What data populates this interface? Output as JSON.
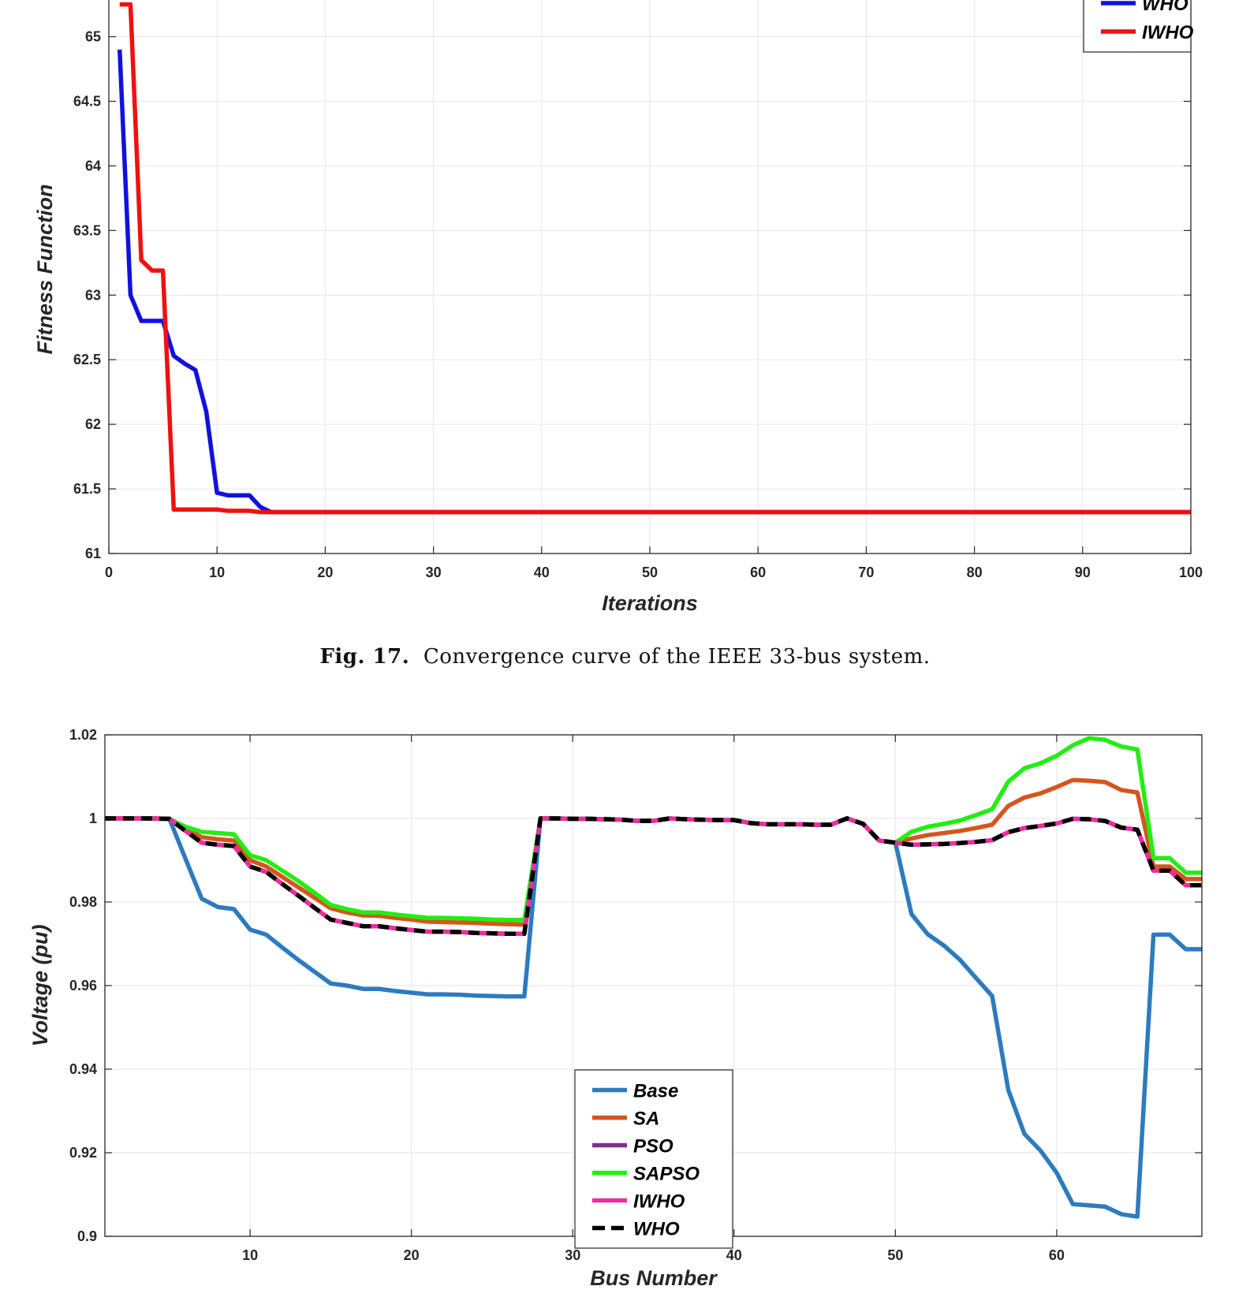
{
  "caption": {
    "label": "Fig. 17.",
    "text": "Convergence curve of the IEEE 33-bus system."
  },
  "chart_data": [
    {
      "type": "line",
      "title": "",
      "xlabel": "Iterations",
      "ylabel": "Fitness Function",
      "xlim": [
        0,
        100
      ],
      "ylim": [
        61,
        65.4
      ],
      "xticks": [
        0,
        10,
        20,
        30,
        40,
        50,
        60,
        70,
        80,
        90,
        100
      ],
      "yticks": [
        61,
        61.5,
        62,
        62.5,
        63,
        63.5,
        64,
        64.5,
        65
      ],
      "ytick_labels": [
        "61",
        "61.5",
        "62",
        "62.5",
        "63",
        "63.5",
        "64",
        "64.5",
        "65"
      ],
      "grid": true,
      "legend_position": "top-right",
      "series": [
        {
          "name": "WHO",
          "color": "#1111dd",
          "x": [
            1,
            2,
            3,
            4,
            5,
            6,
            7,
            8,
            9,
            10,
            11,
            12,
            13,
            14,
            15,
            16,
            20,
            30,
            50,
            100
          ],
          "y": [
            64.9,
            63.0,
            62.8,
            62.8,
            62.8,
            62.53,
            62.47,
            62.42,
            62.1,
            61.47,
            61.45,
            61.45,
            61.45,
            61.36,
            61.32,
            61.32,
            61.32,
            61.32,
            61.32,
            61.32
          ]
        },
        {
          "name": "IWHO",
          "color": "#ee1111",
          "x": [
            1,
            2,
            3,
            4,
            5,
            6,
            7,
            8,
            9,
            10,
            11,
            12,
            13,
            14,
            15,
            16,
            20,
            50,
            100
          ],
          "y": [
            65.25,
            65.25,
            63.27,
            63.19,
            63.19,
            61.34,
            61.34,
            61.34,
            61.34,
            61.34,
            61.33,
            61.33,
            61.33,
            61.32,
            61.32,
            61.32,
            61.32,
            61.32,
            61.32
          ]
        }
      ]
    },
    {
      "type": "line",
      "title": "",
      "xlabel": "Bus Number",
      "ylabel": "Voltage (pu)",
      "xlim": [
        1,
        69
      ],
      "ylim": [
        0.9,
        1.02
      ],
      "xticks": [
        10,
        20,
        30,
        40,
        50,
        60
      ],
      "yticks": [
        0.9,
        0.92,
        0.94,
        0.96,
        0.98,
        1.0,
        1.02
      ],
      "ytick_labels": [
        "0.9",
        "0.92",
        "0.94",
        "0.96",
        "0.98",
        "1",
        "1.02"
      ],
      "grid": true,
      "legend_position": "lower-center",
      "series": [
        {
          "name": "Base",
          "color": "#2d7bbf",
          "x": [
            1,
            2,
            3,
            4,
            5,
            6,
            7,
            8,
            9,
            10,
            11,
            12,
            13,
            14,
            15,
            16,
            17,
            18,
            19,
            20,
            21,
            22,
            23,
            24,
            25,
            26,
            27,
            28,
            29,
            30,
            31,
            32,
            33,
            34,
            35,
            36,
            37,
            38,
            39,
            40,
            41,
            42,
            43,
            44,
            45,
            46,
            47,
            48,
            49,
            50,
            51,
            52,
            53,
            54,
            55,
            56,
            57,
            58,
            59,
            60,
            61,
            62,
            63,
            64,
            65,
            66,
            67,
            68,
            69
          ],
          "y": [
            1.0,
            1.0,
            1.0,
            0.9999,
            0.9999,
            0.9903,
            0.9808,
            0.9788,
            0.9783,
            0.9734,
            0.9722,
            0.9691,
            0.9661,
            0.9633,
            0.9605,
            0.96,
            0.9592,
            0.9592,
            0.9587,
            0.9583,
            0.9579,
            0.9579,
            0.9578,
            0.9576,
            0.9575,
            0.9574,
            0.9574,
            1.0,
            1.0,
            0.9999,
            0.9999,
            0.9998,
            0.9997,
            0.9994,
            0.9994,
            1.0,
            0.9998,
            0.9997,
            0.9996,
            0.9996,
            0.9989,
            0.9986,
            0.9986,
            0.9986,
            0.9985,
            0.9985,
            1.0,
            0.9987,
            0.9947,
            0.9942,
            0.9771,
            0.9723,
            0.9696,
            0.9662,
            0.9618,
            0.9575,
            0.935,
            0.9245,
            0.9205,
            0.9152,
            0.9077,
            0.9074,
            0.9071,
            0.9053,
            0.9047,
            0.9722,
            0.9722,
            0.9687,
            0.9687
          ]
        },
        {
          "name": "SA",
          "color": "#d4561f",
          "x": [
            1,
            2,
            3,
            4,
            5,
            6,
            7,
            8,
            9,
            10,
            11,
            12,
            13,
            14,
            15,
            16,
            17,
            18,
            19,
            20,
            21,
            22,
            23,
            24,
            25,
            26,
            27,
            28,
            29,
            30,
            31,
            32,
            33,
            34,
            35,
            36,
            37,
            38,
            39,
            40,
            41,
            42,
            43,
            44,
            45,
            46,
            47,
            48,
            49,
            50,
            51,
            52,
            53,
            54,
            55,
            56,
            57,
            58,
            59,
            60,
            61,
            62,
            63,
            64,
            65,
            66,
            67,
            68,
            69
          ],
          "y": [
            1.0,
            1.0,
            1.0,
            1.0,
            0.9999,
            0.9975,
            0.9955,
            0.995,
            0.9947,
            0.99,
            0.9885,
            0.986,
            0.9835,
            0.981,
            0.9785,
            0.9775,
            0.9768,
            0.9767,
            0.9762,
            0.9758,
            0.9753,
            0.9752,
            0.9751,
            0.975,
            0.9748,
            0.9747,
            0.9746,
            1.0,
            1.0,
            0.9999,
            0.9999,
            0.9998,
            0.9997,
            0.9994,
            0.9994,
            1.0,
            0.9998,
            0.9997,
            0.9996,
            0.9996,
            0.9989,
            0.9986,
            0.9986,
            0.9986,
            0.9985,
            0.9985,
            1.0,
            0.9987,
            0.9947,
            0.9942,
            0.9952,
            0.996,
            0.9965,
            0.997,
            0.9977,
            0.9985,
            1.003,
            1.005,
            1.006,
            1.0075,
            1.0092,
            1.009,
            1.0087,
            1.0068,
            1.0062,
            0.9885,
            0.9885,
            0.9855,
            0.9855
          ]
        },
        {
          "name": "PSO",
          "color": "#7e2f8e",
          "x": [
            1,
            2,
            3,
            4,
            5,
            6,
            7,
            8,
            9,
            10,
            11,
            12,
            13,
            14,
            15,
            16,
            17,
            18,
            19,
            20,
            21,
            22,
            23,
            24,
            25,
            26,
            27,
            28,
            29,
            30,
            31,
            32,
            33,
            34,
            35,
            36,
            37,
            38,
            39,
            40,
            41,
            42,
            43,
            44,
            45,
            46,
            47,
            48,
            49,
            50,
            51,
            52,
            53,
            54,
            55,
            56,
            57,
            58,
            59,
            60,
            61,
            62,
            63,
            64,
            65,
            66,
            67,
            68,
            69
          ],
          "y": [
            1.0,
            1.0,
            1.0,
            1.0,
            0.9999,
            0.997,
            0.9942,
            0.9937,
            0.9934,
            0.9885,
            0.9872,
            0.9843,
            0.9815,
            0.9786,
            0.9758,
            0.975,
            0.9742,
            0.9742,
            0.9737,
            0.9733,
            0.9729,
            0.9729,
            0.9728,
            0.9726,
            0.9725,
            0.9724,
            0.9724,
            1.0,
            1.0,
            0.9999,
            0.9999,
            0.9998,
            0.9997,
            0.9994,
            0.9994,
            1.0,
            0.9998,
            0.9997,
            0.9996,
            0.9996,
            0.9989,
            0.9986,
            0.9986,
            0.9986,
            0.9985,
            0.9985,
            1.0,
            0.9987,
            0.9947,
            0.9942,
            0.9937,
            0.9938,
            0.9939,
            0.9941,
            0.9944,
            0.9948,
            0.9967,
            0.9977,
            0.9982,
            0.9988,
            0.9999,
            0.9998,
            0.9994,
            0.9978,
            0.9973,
            0.9875,
            0.9875,
            0.984,
            0.984
          ]
        },
        {
          "name": "SAPSO",
          "color": "#22ee11",
          "x": [
            1,
            2,
            3,
            4,
            5,
            6,
            7,
            8,
            9,
            10,
            11,
            12,
            13,
            14,
            15,
            16,
            17,
            18,
            19,
            20,
            21,
            22,
            23,
            24,
            25,
            26,
            27,
            28,
            29,
            30,
            31,
            32,
            33,
            34,
            35,
            36,
            37,
            38,
            39,
            40,
            41,
            42,
            43,
            44,
            45,
            46,
            47,
            48,
            49,
            50,
            51,
            52,
            53,
            54,
            55,
            56,
            57,
            58,
            59,
            60,
            61,
            62,
            63,
            64,
            65,
            66,
            67,
            68,
            69
          ],
          "y": [
            1.0,
            1.0,
            1.0,
            1.0,
            0.9999,
            0.998,
            0.9968,
            0.9965,
            0.9962,
            0.9912,
            0.99,
            0.9875,
            0.985,
            0.9822,
            0.9793,
            0.9783,
            0.9775,
            0.9775,
            0.977,
            0.9766,
            0.9762,
            0.9762,
            0.9761,
            0.976,
            0.9758,
            0.9757,
            0.9757,
            1.0,
            1.0,
            0.9999,
            0.9999,
            0.9998,
            0.9997,
            0.9994,
            0.9994,
            1.0,
            0.9998,
            0.9997,
            0.9996,
            0.9996,
            0.9989,
            0.9986,
            0.9986,
            0.9986,
            0.9985,
            0.9985,
            1.0,
            0.9987,
            0.9947,
            0.9942,
            0.9968,
            0.998,
            0.9987,
            0.9995,
            1.0008,
            1.0022,
            1.0088,
            1.012,
            1.0132,
            1.015,
            1.0175,
            1.0192,
            1.0188,
            1.0172,
            1.0165,
            0.9905,
            0.9905,
            0.987,
            0.987
          ]
        },
        {
          "name": "IWHO",
          "color": "#ee2d9e",
          "x": [
            1,
            2,
            3,
            4,
            5,
            6,
            7,
            8,
            9,
            10,
            11,
            12,
            13,
            14,
            15,
            16,
            17,
            18,
            19,
            20,
            21,
            22,
            23,
            24,
            25,
            26,
            27,
            28,
            29,
            30,
            31,
            32,
            33,
            34,
            35,
            36,
            37,
            38,
            39,
            40,
            41,
            42,
            43,
            44,
            45,
            46,
            47,
            48,
            49,
            50,
            51,
            52,
            53,
            54,
            55,
            56,
            57,
            58,
            59,
            60,
            61,
            62,
            63,
            64,
            65,
            66,
            67,
            68,
            69
          ],
          "y": [
            1.0,
            1.0,
            1.0,
            1.0,
            0.9999,
            0.997,
            0.9942,
            0.9937,
            0.9934,
            0.9885,
            0.9872,
            0.9843,
            0.9815,
            0.9786,
            0.9758,
            0.975,
            0.9742,
            0.9742,
            0.9737,
            0.9733,
            0.9729,
            0.9729,
            0.9728,
            0.9726,
            0.9725,
            0.9724,
            0.9724,
            1.0,
            1.0,
            0.9999,
            0.9999,
            0.9998,
            0.9997,
            0.9994,
            0.9994,
            1.0,
            0.9998,
            0.9997,
            0.9996,
            0.9996,
            0.9989,
            0.9986,
            0.9986,
            0.9986,
            0.9985,
            0.9985,
            1.0,
            0.9987,
            0.9947,
            0.9942,
            0.9937,
            0.9938,
            0.9939,
            0.9941,
            0.9944,
            0.9948,
            0.9967,
            0.9977,
            0.9982,
            0.9988,
            0.9999,
            0.9998,
            0.9994,
            0.9978,
            0.9973,
            0.9875,
            0.9875,
            0.984,
            0.984
          ]
        },
        {
          "name": "WHO",
          "color": "#000000",
          "dashed": true,
          "x": [
            1,
            2,
            3,
            4,
            5,
            6,
            7,
            8,
            9,
            10,
            11,
            12,
            13,
            14,
            15,
            16,
            17,
            18,
            19,
            20,
            21,
            22,
            23,
            24,
            25,
            26,
            27,
            28,
            29,
            30,
            31,
            32,
            33,
            34,
            35,
            36,
            37,
            38,
            39,
            40,
            41,
            42,
            43,
            44,
            45,
            46,
            47,
            48,
            49,
            50,
            51,
            52,
            53,
            54,
            55,
            56,
            57,
            58,
            59,
            60,
            61,
            62,
            63,
            64,
            65,
            66,
            67,
            68,
            69
          ],
          "y": [
            1.0,
            1.0,
            1.0,
            1.0,
            0.9999,
            0.997,
            0.9942,
            0.9937,
            0.9934,
            0.9885,
            0.9872,
            0.9843,
            0.9815,
            0.9786,
            0.9758,
            0.975,
            0.9742,
            0.9742,
            0.9737,
            0.9733,
            0.9729,
            0.9729,
            0.9728,
            0.9726,
            0.9725,
            0.9724,
            0.9724,
            1.0,
            1.0,
            0.9999,
            0.9999,
            0.9998,
            0.9997,
            0.9994,
            0.9994,
            1.0,
            0.9998,
            0.9997,
            0.9996,
            0.9996,
            0.9989,
            0.9986,
            0.9986,
            0.9986,
            0.9985,
            0.9985,
            1.0,
            0.9987,
            0.9947,
            0.9942,
            0.9937,
            0.9938,
            0.9939,
            0.9941,
            0.9944,
            0.9948,
            0.9967,
            0.9977,
            0.9982,
            0.9988,
            0.9999,
            0.9998,
            0.9994,
            0.9978,
            0.9973,
            0.9875,
            0.9875,
            0.984,
            0.984
          ]
        }
      ]
    }
  ]
}
